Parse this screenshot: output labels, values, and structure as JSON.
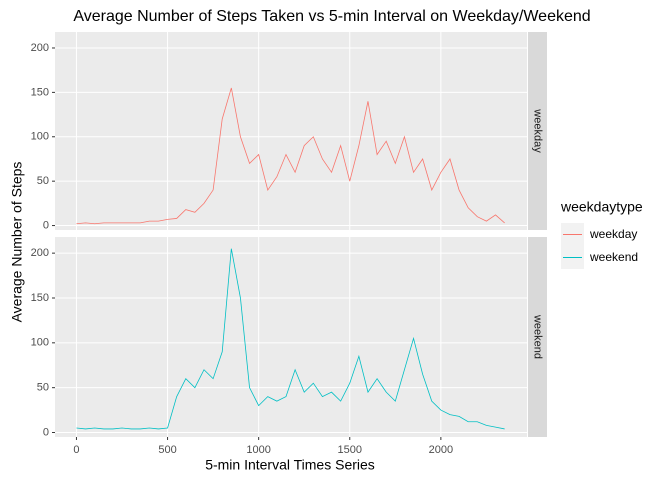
{
  "chart_data": {
    "type": "line",
    "title": "Average Number of Steps Taken vs 5-min Interval on Weekday/Weekend",
    "x_label": "5-min Interval Times Series",
    "y_label": "Average Number of Steps",
    "legend_title": "weekdaytype",
    "x": [
      0,
      50,
      100,
      150,
      200,
      250,
      300,
      350,
      400,
      450,
      500,
      550,
      600,
      650,
      700,
      750,
      800,
      850,
      900,
      950,
      1000,
      1050,
      1100,
      1150,
      1200,
      1250,
      1300,
      1350,
      1400,
      1450,
      1500,
      1550,
      1600,
      1650,
      1700,
      1750,
      1800,
      1850,
      1900,
      1950,
      2000,
      2050,
      2100,
      2150,
      2200,
      2250,
      2300,
      2350
    ],
    "series": [
      {
        "name": "weekday",
        "color": "#F8766D",
        "values": [
          2,
          3,
          2,
          3,
          3,
          3,
          3,
          3,
          5,
          5,
          7,
          8,
          18,
          15,
          25,
          40,
          120,
          155,
          100,
          70,
          80,
          40,
          55,
          80,
          60,
          90,
          100,
          75,
          60,
          90,
          50,
          90,
          140,
          80,
          95,
          70,
          100,
          60,
          75,
          40,
          60,
          75,
          40,
          20,
          10,
          5,
          12,
          3
        ]
      },
      {
        "name": "weekend",
        "color": "#00BFC4",
        "values": [
          5,
          4,
          5,
          4,
          4,
          5,
          4,
          4,
          5,
          4,
          5,
          40,
          60,
          50,
          70,
          60,
          90,
          205,
          150,
          50,
          30,
          40,
          35,
          40,
          70,
          45,
          55,
          40,
          45,
          35,
          55,
          85,
          45,
          60,
          45,
          35,
          70,
          105,
          65,
          35,
          25,
          20,
          18,
          12,
          12,
          8,
          6,
          4
        ]
      }
    ],
    "xlim": [
      -117.75,
      2472.75
    ],
    "xticks": [
      0,
      500,
      1000,
      1500,
      2000
    ],
    "ylim": [
      -5,
      218
    ],
    "yticks": [
      0,
      50,
      100,
      150,
      200
    ],
    "grid": true
  }
}
